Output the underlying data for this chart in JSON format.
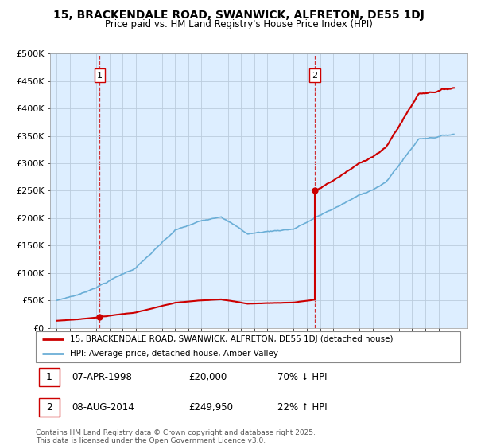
{
  "title": "15, BRACKENDALE ROAD, SWANWICK, ALFRETON, DE55 1DJ",
  "subtitle": "Price paid vs. HM Land Registry's House Price Index (HPI)",
  "ylim": [
    0,
    500000
  ],
  "yticks": [
    0,
    50000,
    100000,
    150000,
    200000,
    250000,
    300000,
    350000,
    400000,
    450000,
    500000
  ],
  "ytick_labels": [
    "£0",
    "£50K",
    "£100K",
    "£150K",
    "£200K",
    "£250K",
    "£300K",
    "£350K",
    "£400K",
    "£450K",
    "£500K"
  ],
  "sale1_year": 1998.27,
  "sale1_price": 20000,
  "sale2_year": 2014.6,
  "sale2_price": 249950,
  "hpi_line_color": "#6aaed6",
  "price_line_color": "#cc0000",
  "dashed_vline_color": "#cc0000",
  "chart_bg_color": "#ddeeff",
  "background_color": "#ffffff",
  "grid_color": "#bbccdd",
  "legend_line1": "15, BRACKENDALE ROAD, SWANWICK, ALFRETON, DE55 1DJ (detached house)",
  "legend_line2": "HPI: Average price, detached house, Amber Valley",
  "annotation1_date": "07-APR-1998",
  "annotation1_price": "£20,000",
  "annotation1_hpi": "70% ↓ HPI",
  "annotation2_date": "08-AUG-2014",
  "annotation2_price": "£249,950",
  "annotation2_hpi": "22% ↑ HPI",
  "footer": "Contains HM Land Registry data © Crown copyright and database right 2025.\nThis data is licensed under the Open Government Licence v3.0.",
  "xlim_start": 1994.5,
  "xlim_end": 2026.2
}
